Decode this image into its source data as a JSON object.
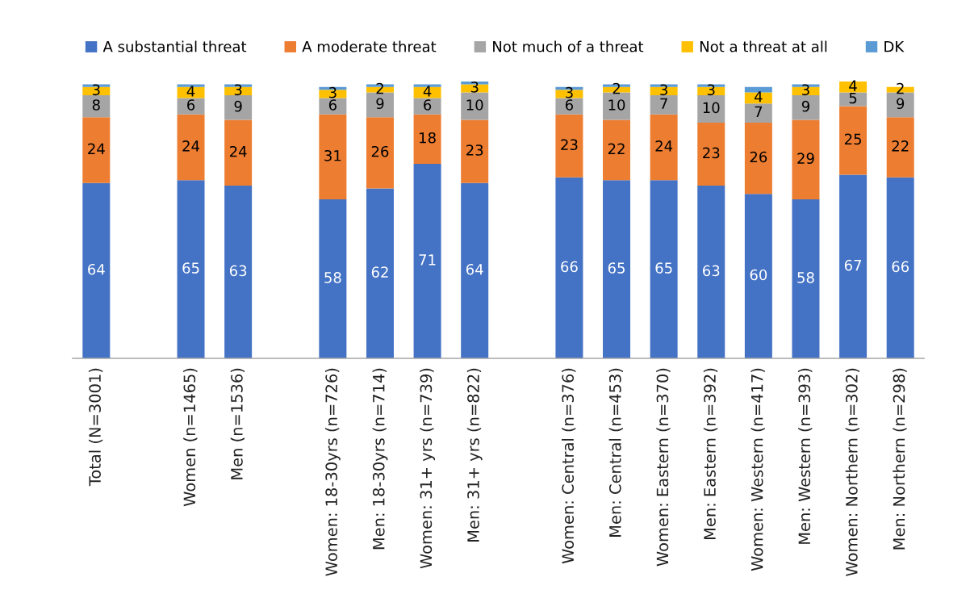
{
  "chart_data": {
    "type": "bar",
    "stacked": true,
    "legend": "top",
    "categories": [
      "Total (N=3001)",
      null,
      "Women (n=1465)",
      "Men (n=1536)",
      null,
      "Women: 18-30yrs (n=726)",
      "Men: 18-30yrs (n=714)",
      "Women: 31+ yrs (n=739)",
      "Men: 31+ yrs (n=822)",
      null,
      "Women: Central (n=376)",
      "Men: Central (n=453)",
      "Women: Eastern (n=370)",
      "Men: Eastern (n=392)",
      "Women: Western (n=417)",
      "Men: Western (n=393)",
      "Women: Northern (n=302)",
      "Men: Northern (n=298)"
    ],
    "series": [
      {
        "name": "A substantial threat",
        "color": "#4472c4",
        "values": [
          64,
          null,
          65,
          63,
          null,
          58,
          62,
          71,
          64,
          null,
          66,
          65,
          65,
          63,
          60,
          58,
          67,
          66
        ],
        "value_labels": [
          "64",
          null,
          "65",
          "63",
          null,
          "58",
          "62",
          "71",
          "64",
          null,
          "66",
          "65",
          "65",
          "63",
          "60",
          "58",
          "67",
          "66"
        ]
      },
      {
        "name": "A moderate threat",
        "color": "#ed7d31",
        "values": [
          24,
          null,
          24,
          24,
          null,
          31,
          26,
          18,
          23,
          null,
          23,
          22,
          24,
          23,
          26,
          29,
          25,
          22
        ],
        "value_labels": [
          "24",
          null,
          "24",
          "24",
          null,
          "31",
          "26",
          "18",
          "23",
          null,
          "23",
          "22",
          "24",
          "23",
          "26",
          "29",
          "25",
          "22"
        ]
      },
      {
        "name": "Not much of a threat",
        "color": "#a5a5a5",
        "values": [
          8,
          null,
          6,
          9,
          null,
          6,
          9,
          6,
          10,
          null,
          6,
          10,
          7,
          10,
          7,
          9,
          5,
          9
        ],
        "value_labels": [
          "8",
          null,
          "6",
          "9",
          null,
          "6",
          "9",
          "6",
          "10",
          null,
          "6",
          "10",
          "7",
          "10",
          "7",
          "9",
          "5",
          "9"
        ]
      },
      {
        "name": "Not a threat at all",
        "color": "#ffc000",
        "values": [
          3,
          null,
          4,
          3,
          null,
          3,
          2,
          4,
          3,
          null,
          3,
          2,
          3,
          3,
          4,
          3,
          4,
          2
        ],
        "value_labels": [
          "3",
          null,
          "4",
          "3",
          null,
          "3",
          "2",
          "4",
          "3",
          null,
          "3",
          "2",
          "3",
          "3",
          "4",
          "3",
          "4",
          "2"
        ]
      },
      {
        "name": "DK",
        "color": "#5b9bd5",
        "values": [
          1,
          null,
          1,
          1,
          null,
          1,
          1,
          1,
          1,
          null,
          1,
          1,
          1,
          1,
          2,
          1,
          null,
          null
        ],
        "value_labels": [
          null,
          null,
          null,
          null,
          null,
          null,
          null,
          null,
          null,
          null,
          null,
          null,
          null,
          null,
          null,
          null,
          null,
          null
        ]
      }
    ]
  }
}
